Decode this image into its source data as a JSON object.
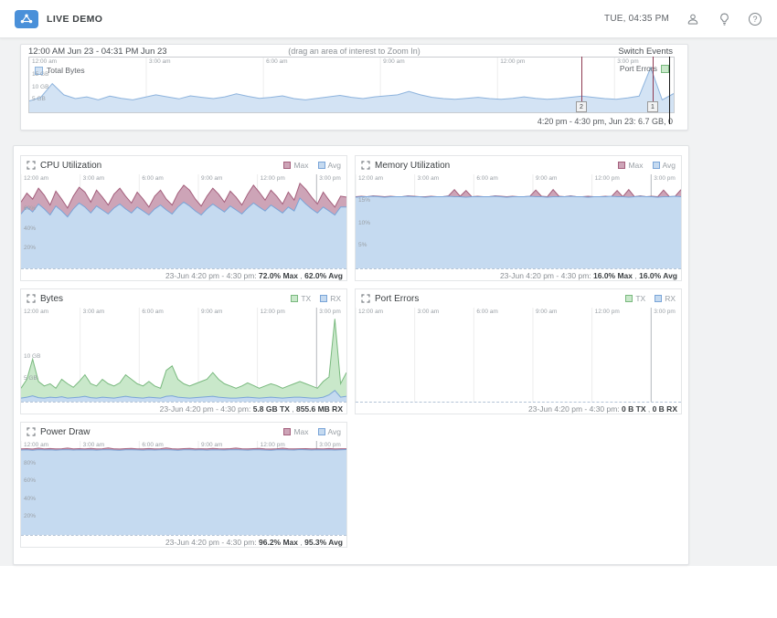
{
  "topbar": {
    "brand": "LIVE DEMO",
    "datetime": "TUE, 04:35 PM",
    "help_glyph": "?"
  },
  "timeline": {
    "range_label": "12:00 AM Jun 23 - 04:31 PM Jun 23",
    "hint": "(drag an area of interest to Zoom In)",
    "switch_events_label": "Switch Events",
    "legend_total_bytes": "Total Bytes",
    "legend_port_errors": "Port Errors",
    "caption": "4:20 pm - 4:30 pm, Jun 23: 6.7 GB, 0",
    "chart": {
      "type": "area",
      "span_hours": 16.517,
      "tick_hours": [
        0,
        3,
        6,
        9,
        12,
        15
      ],
      "tick_labels": [
        "12:00 am",
        "3:00 am",
        "6:00 am",
        "9:00 am",
        "12:00 pm",
        "3:00 pm"
      ],
      "ymax_gb": 22,
      "ylabels": [
        {
          "v": 15,
          "label": "15 GB"
        },
        {
          "v": 10,
          "label": "10 GB"
        },
        {
          "v": 5,
          "label": "5 GB"
        }
      ],
      "series": [
        {
          "key": "timeline_blue",
          "name": "Total Bytes",
          "values": [
            4.5,
            6,
            11.5,
            7,
            5.5,
            6.2,
            5,
            6.5,
            5.6,
            5,
            6,
            7,
            6.2,
            5.4,
            6.6,
            6,
            5.5,
            6.2,
            7.4,
            6.4,
            5.6,
            6,
            6.6,
            5.5,
            5,
            5.6,
            6.2,
            6.8,
            6,
            5.5,
            6.2,
            6.6,
            7,
            8.4,
            7,
            6,
            5.5,
            5.2,
            5.6,
            6,
            5.5,
            5.2,
            5.6,
            6.2,
            5.6,
            5.2,
            5.5,
            6,
            6.5,
            6,
            5.5,
            5.2,
            5.8,
            6.5,
            18,
            5,
            7.5
          ]
        }
      ],
      "event_markers": [
        {
          "label": "2",
          "hour": 14.17
        },
        {
          "label": "1",
          "hour": 16.0
        }
      ],
      "cursor_hour": 16.42
    }
  },
  "colors": {
    "timeline_blue": {
      "fill": "#d3e3f4",
      "line": "#8db3dd"
    },
    "max": {
      "fill": "#cda4b7",
      "line": "#a45f7c"
    },
    "avg": {
      "fill": "#c5daf0",
      "line": "#7aa5d8"
    },
    "tx": {
      "fill": "#c9e8ca",
      "line": "#79b97e"
    },
    "rx": {
      "fill": "#c5daf0",
      "line": "#7aa5d8"
    }
  },
  "shared_ticks": {
    "labels": [
      "12:00 am",
      "3:00 am",
      "6:00 am",
      "9:00 am",
      "12:00 pm",
      "3:00 pm"
    ],
    "hours": [
      0,
      3,
      6,
      9,
      12,
      15
    ],
    "span_hours": 16.517,
    "dark_tick_index": 5
  },
  "panels": [
    {
      "title": "CPU Utilization",
      "legend": [
        {
          "label": "Max",
          "key": "max"
        },
        {
          "label": "Avg",
          "key": "avg"
        }
      ],
      "caption_prefix": "23-Jun 4:20 pm - 4:30 pm:",
      "caption_values": [
        "72.0% Max",
        "62.0% Avg"
      ],
      "chart": {
        "type": "area",
        "ymax": 95,
        "ylabels": [
          {
            "v": 60,
            "label": "60%"
          },
          {
            "v": 40,
            "label": "40%"
          },
          {
            "v": 20,
            "label": "20%"
          }
        ],
        "series": [
          {
            "key": "max",
            "name": "Max",
            "values": [
              67,
              76,
              70,
              81,
              74,
              64,
              78,
              70,
              61,
              73,
              82,
              77,
              67,
              79,
              72,
              64,
              75,
              81,
              73,
              66,
              77,
              70,
              62,
              73,
              79,
              70,
              64,
              76,
              84,
              79,
              70,
              63,
              73,
              81,
              75,
              67,
              78,
              72,
              64,
              75,
              84,
              77,
              69,
              79,
              73,
              65,
              77,
              69,
              86,
              80,
              72,
              65,
              77,
              69,
              62,
              73,
              72
            ]
          },
          {
            "key": "avg",
            "name": "Avg",
            "values": [
              55,
              62,
              57,
              65,
              60,
              54,
              63,
              58,
              52,
              60,
              66,
              62,
              56,
              63,
              59,
              55,
              61,
              65,
              60,
              56,
              62,
              58,
              54,
              60,
              64,
              59,
              55,
              62,
              67,
              63,
              58,
              54,
              60,
              65,
              61,
              57,
              63,
              59,
              55,
              61,
              66,
              62,
              58,
              64,
              60,
              56,
              62,
              58,
              71,
              65,
              60,
              56,
              62,
              58,
              54,
              62,
              62
            ]
          }
        ]
      }
    },
    {
      "title": "Memory Utilization",
      "legend": [
        {
          "label": "Max",
          "key": "max"
        },
        {
          "label": "Avg",
          "key": "avg"
        }
      ],
      "caption_prefix": "23-Jun 4:20 pm - 4:30 pm:",
      "caption_values": [
        "16.0% Max",
        "16.0% Avg"
      ],
      "chart": {
        "type": "area",
        "ymax": 21,
        "ylabels": [
          {
            "v": 15,
            "label": "15%"
          },
          {
            "v": 10,
            "label": "10%"
          },
          {
            "v": 5,
            "label": "5%"
          }
        ],
        "series": [
          {
            "key": "max",
            "name": "Max",
            "values": [
              16,
              16.1,
              16,
              16.2,
              16.1,
              16,
              16.1,
              16,
              16,
              16.2,
              16.1,
              16,
              16,
              16.1,
              16,
              16,
              16.2,
              17.6,
              16.1,
              17.4,
              16,
              16.1,
              16,
              16,
              16.2,
              16.1,
              16,
              16.1,
              16,
              16,
              16.1,
              17.5,
              16.1,
              16,
              17.6,
              16.1,
              16,
              16.2,
              16,
              16,
              16.1,
              16,
              16,
              16.1,
              16,
              17.4,
              16,
              17.6,
              16,
              16.2,
              16,
              16.1,
              16,
              17.5,
              16,
              16.1,
              17.6
            ]
          },
          {
            "key": "avg",
            "name": "Avg",
            "values": [
              15.9,
              16,
              16,
              16.1,
              16,
              15.9,
              16,
              16,
              16,
              16.1,
              16,
              16,
              15.9,
              16,
              16,
              16,
              16.1,
              16,
              16,
              15.9,
              16,
              16,
              16,
              16,
              16.1,
              16,
              15.9,
              16,
              16,
              16,
              16.1,
              16,
              16,
              15.9,
              16,
              16,
              16,
              16.1,
              16,
              16,
              15.9,
              16,
              16,
              16,
              16.1,
              16,
              16,
              15.9,
              16,
              16.1,
              16,
              16,
              15.9,
              16,
              16,
              16.1,
              16
            ]
          }
        ]
      }
    },
    {
      "title": "Bytes",
      "legend": [
        {
          "label": "TX",
          "key": "tx"
        },
        {
          "label": "RX",
          "key": "rx"
        }
      ],
      "caption_prefix": "23-Jun 4:20 pm - 4:30 pm:",
      "caption_values": [
        "5.8 GB TX",
        "855.6 MB RX"
      ],
      "chart": {
        "type": "area",
        "ymax": 21,
        "ylabels": [
          {
            "v": 10,
            "label": "10 GB"
          },
          {
            "v": 5,
            "label": "5 GB"
          }
        ],
        "series": [
          {
            "key": "tx",
            "name": "TX",
            "values": [
              3,
              5,
              9.5,
              4.5,
              3.5,
              4,
              3,
              5,
              4,
              3.2,
              4.5,
              6,
              4,
              3.5,
              5,
              4,
              3.5,
              4.2,
              6,
              5,
              4,
              3.5,
              4.5,
              3.5,
              3,
              7,
              8,
              5,
              4,
              3.5,
              4,
              4.5,
              5,
              6.5,
              5,
              4,
              3.5,
              3,
              3.5,
              4.2,
              3.6,
              3,
              3.5,
              4,
              3.6,
              3,
              3.5,
              4,
              4.5,
              4,
              3.5,
              3,
              4.5,
              5.5,
              18.5,
              4,
              6.5
            ]
          },
          {
            "key": "rx",
            "name": "RX",
            "values": [
              0.8,
              1,
              1.3,
              0.9,
              0.8,
              1,
              0.9,
              1.1,
              0.8,
              0.9,
              1,
              1.2,
              0.9,
              0.8,
              1,
              0.9,
              0.8,
              1,
              1.2,
              1,
              0.9,
              0.8,
              1,
              0.9,
              0.8,
              1.2,
              1.3,
              1,
              0.9,
              0.8,
              0.9,
              1,
              1.1,
              1.2,
              1,
              0.9,
              0.8,
              0.8,
              0.9,
              1,
              0.9,
              0.8,
              0.9,
              1,
              0.9,
              0.8,
              0.9,
              1,
              1,
              0.9,
              0.8,
              0.8,
              1,
              1.5,
              2.5,
              1,
              1.2
            ]
          }
        ]
      }
    },
    {
      "title": "Port Errors",
      "legend": [
        {
          "label": "TX",
          "key": "tx"
        },
        {
          "label": "RX",
          "key": "rx"
        }
      ],
      "caption_prefix": "23-Jun 4:20 pm - 4:30 pm:",
      "caption_values": [
        "0 B TX",
        "0 B RX"
      ],
      "chart": {
        "type": "area",
        "ymax": 1,
        "ylabels": [],
        "series": [
          {
            "key": "tx",
            "name": "TX",
            "values": [
              0,
              0
            ]
          },
          {
            "key": "rx",
            "name": "RX",
            "values": [
              0,
              0
            ]
          }
        ]
      }
    },
    {
      "title": "Power Draw",
      "legend": [
        {
          "label": "Max",
          "key": "max"
        },
        {
          "label": "Avg",
          "key": "avg"
        }
      ],
      "caption_prefix": "23-Jun 4:20 pm - 4:30 pm:",
      "caption_values": [
        "96.2% Max",
        "95.3% Avg"
      ],
      "chart": {
        "type": "area",
        "ymax": 105,
        "ylabels": [
          {
            "v": 80,
            "label": "80%"
          },
          {
            "v": 60,
            "label": "60%"
          },
          {
            "v": 40,
            "label": "40%"
          },
          {
            "v": 20,
            "label": "20%"
          }
        ],
        "series": [
          {
            "key": "max",
            "name": "Max",
            "values": [
              96,
              96.3,
              95.9,
              96.8,
              96.1,
              96.4,
              96,
              96.2,
              96.9,
              96.1,
              96.3,
              96,
              96.5,
              96.1,
              96.2,
              97,
              96.1,
              95.9,
              96.3,
              96.6,
              96.1,
              96,
              96.4,
              96.1,
              96.2,
              97.2,
              96.2,
              95.9,
              96.3,
              96.5,
              96.1,
              96.2,
              96,
              96.6,
              96.2,
              96.1,
              96.3,
              96.9,
              96.2,
              96,
              96.3,
              96.5,
              96.1,
              95.9,
              96.2,
              96.8,
              96.2,
              96.1,
              96.2,
              96.3,
              96.1,
              96.2,
              96,
              96.4,
              96.1,
              96.2,
              96.2
            ]
          },
          {
            "key": "avg",
            "name": "Avg",
            "values": [
              94.8,
              95,
              94.6,
              95.2,
              94.9,
              95.1,
              94.7,
              95,
              95.2,
              94.8,
              95,
              94.9,
              95.1,
              94.7,
              95,
              95.2,
              94.8,
              94.6,
              95,
              95.1,
              94.9,
              94.7,
              95.1,
              94.8,
              95,
              95.2,
              94.9,
              94.6,
              95,
              95.1,
              94.8,
              95,
              94.7,
              95.1,
              94.9,
              94.8,
              95,
              95.2,
              94.9,
              94.7,
              95,
              95.1,
              94.8,
              94.6,
              95,
              95.2,
              94.9,
              94.8,
              95.3,
              95,
              94.8,
              95,
              94.9,
              95.1,
              94.8,
              95,
              95.3
            ]
          }
        ]
      }
    }
  ]
}
